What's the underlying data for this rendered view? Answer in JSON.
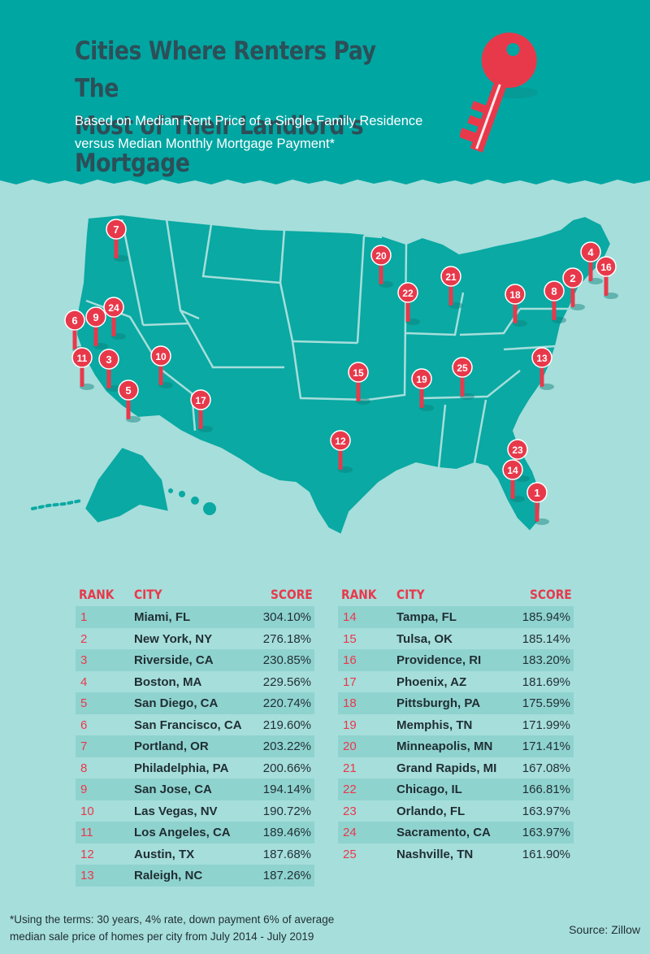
{
  "header": {
    "title_line1": "Cities Where Renters Pay The",
    "title_line2": "Most of Their Landlord's Mortgage",
    "subtitle_line1": "Based on Median Rent Price of a Single Family Residence",
    "subtitle_line2": "versus Median Monthly Mortgage Payment*",
    "icon": "key-icon"
  },
  "colors": {
    "header_bg": "#00a6a2",
    "page_bg": "#a6dedb",
    "map_fill": "#0aa9a3",
    "pin": "#e8394b",
    "title": "#2c4f58",
    "stripe": "#8fd3cf"
  },
  "map": {
    "pins": [
      "7",
      "20",
      "21",
      "22",
      "4",
      "2",
      "8",
      "16",
      "18",
      "6",
      "9",
      "24",
      "11",
      "3",
      "10",
      "15",
      "25",
      "19",
      "13",
      "5",
      "17",
      "12",
      "23",
      "14",
      "1"
    ]
  },
  "table": {
    "headers": {
      "rank": "RANK",
      "city": "CITY",
      "score": "SCORE"
    },
    "left": [
      {
        "rank": "1",
        "city": "Miami, FL",
        "score": "304.10%"
      },
      {
        "rank": "2",
        "city": "New York, NY",
        "score": "276.18%"
      },
      {
        "rank": "3",
        "city": "Riverside, CA",
        "score": "230.85%"
      },
      {
        "rank": "4",
        "city": "Boston, MA",
        "score": "229.56%"
      },
      {
        "rank": "5",
        "city": "San Diego, CA",
        "score": "220.74%"
      },
      {
        "rank": "6",
        "city": "San Francisco, CA",
        "score": "219.60%"
      },
      {
        "rank": "7",
        "city": "Portland, OR",
        "score": "203.22%"
      },
      {
        "rank": "8",
        "city": "Philadelphia, PA",
        "score": "200.66%"
      },
      {
        "rank": "9",
        "city": "San Jose, CA",
        "score": "194.14%"
      },
      {
        "rank": "10",
        "city": "Las Vegas, NV",
        "score": "190.72%"
      },
      {
        "rank": "11",
        "city": "Los Angeles, CA",
        "score": "189.46%"
      },
      {
        "rank": "12",
        "city": "Austin, TX",
        "score": "187.68%"
      },
      {
        "rank": "13",
        "city": "Raleigh, NC",
        "score": "187.26%"
      }
    ],
    "right": [
      {
        "rank": "14",
        "city": "Tampa, FL",
        "score": "185.94%"
      },
      {
        "rank": "15",
        "city": "Tulsa, OK",
        "score": "185.14%"
      },
      {
        "rank": "16",
        "city": "Providence, RI",
        "score": "183.20%"
      },
      {
        "rank": "17",
        "city": "Phoenix, AZ",
        "score": "181.69%"
      },
      {
        "rank": "18",
        "city": "Pittsburgh, PA",
        "score": "175.59%"
      },
      {
        "rank": "19",
        "city": "Memphis, TN",
        "score": "171.99%"
      },
      {
        "rank": "20",
        "city": "Minneapolis, MN",
        "score": "171.41%"
      },
      {
        "rank": "21",
        "city": "Grand Rapids, MI",
        "score": "167.08%"
      },
      {
        "rank": "22",
        "city": "Chicago, IL",
        "score": "166.81%"
      },
      {
        "rank": "23",
        "city": "Orlando, FL",
        "score": "163.97%"
      },
      {
        "rank": "24",
        "city": "Sacramento, CA",
        "score": "163.97%"
      },
      {
        "rank": "25",
        "city": "Nashville, TN",
        "score": "161.90%"
      }
    ]
  },
  "footer": {
    "footnote_line1": "*Using the terms: 30 years, 4% rate, down payment 6% of average",
    "footnote_line2": "median sale price of homes per city from July 2014 - July 2019",
    "source": "Source: Zillow"
  }
}
